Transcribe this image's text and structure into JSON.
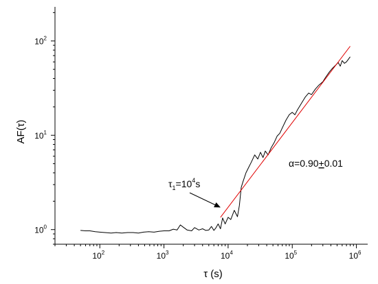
{
  "chart_data": {
    "type": "line",
    "x_scale": "log",
    "y_scale": "log",
    "xlim": [
      20,
      1500000
    ],
    "ylim": [
      0.7,
      230
    ],
    "xlabel": "τ (s)",
    "ylabel": "AF(τ)",
    "x_ticks": [
      {
        "value": 100,
        "base": "10",
        "exp": "2"
      },
      {
        "value": 1000,
        "base": "10",
        "exp": "3"
      },
      {
        "value": 10000,
        "base": "10",
        "exp": "4"
      },
      {
        "value": 100000,
        "base": "10",
        "exp": "5"
      },
      {
        "value": 1000000,
        "base": "10",
        "exp": "6"
      }
    ],
    "y_ticks": [
      {
        "value": 1,
        "base": "10",
        "exp": "0"
      },
      {
        "value": 10,
        "base": "10",
        "exp": "1"
      },
      {
        "value": 100,
        "base": "10",
        "exp": "2"
      }
    ],
    "series": [
      {
        "color": "#000000",
        "points": [
          [
            50,
            0.98
          ],
          [
            60,
            0.97
          ],
          [
            70,
            0.97
          ],
          [
            85,
            0.95
          ],
          [
            100,
            0.94
          ],
          [
            120,
            0.93
          ],
          [
            150,
            0.92
          ],
          [
            180,
            0.93
          ],
          [
            220,
            0.92
          ],
          [
            270,
            0.93
          ],
          [
            330,
            0.93
          ],
          [
            400,
            0.92
          ],
          [
            480,
            0.94
          ],
          [
            580,
            0.95
          ],
          [
            700,
            0.94
          ],
          [
            850,
            0.96
          ],
          [
            1000,
            0.97
          ],
          [
            1200,
            0.97
          ],
          [
            1400,
            1.01
          ],
          [
            1600,
            0.99
          ],
          [
            1800,
            1.12
          ],
          [
            2000,
            1.06
          ],
          [
            2300,
            0.99
          ],
          [
            2700,
            0.97
          ],
          [
            3000,
            1.05
          ],
          [
            3500,
            0.99
          ],
          [
            4000,
            1.02
          ],
          [
            4500,
            0.98
          ],
          [
            5000,
            0.99
          ],
          [
            5500,
            1.08
          ],
          [
            6000,
            0.98
          ],
          [
            6500,
            1.05
          ],
          [
            7000,
            1.15
          ],
          [
            7600,
            1.02
          ],
          [
            8200,
            1.33
          ],
          [
            9000,
            1.15
          ],
          [
            10000,
            1.35
          ],
          [
            11000,
            1.28
          ],
          [
            12500,
            1.6
          ],
          [
            14000,
            1.37
          ],
          [
            15000,
            1.8
          ],
          [
            16000,
            2.8
          ],
          [
            17000,
            3.2
          ],
          [
            19000,
            4.0
          ],
          [
            21000,
            4.6
          ],
          [
            23000,
            5.2
          ],
          [
            26000,
            6.2
          ],
          [
            29000,
            5.6
          ],
          [
            32000,
            6.6
          ],
          [
            35000,
            5.8
          ],
          [
            38000,
            6.8
          ],
          [
            42000,
            6.2
          ],
          [
            47000,
            7.4
          ],
          [
            52000,
            8.3
          ],
          [
            58000,
            9.8
          ],
          [
            64000,
            10.5
          ],
          [
            70000,
            12.0
          ],
          [
            80000,
            14.5
          ],
          [
            90000,
            16.6
          ],
          [
            100000,
            17.5
          ],
          [
            110000,
            16.5
          ],
          [
            120000,
            18.5
          ],
          [
            140000,
            22.0
          ],
          [
            160000,
            25.5
          ],
          [
            180000,
            28.0
          ],
          [
            200000,
            27.0
          ],
          [
            230000,
            31.0
          ],
          [
            260000,
            34.0
          ],
          [
            300000,
            37.0
          ],
          [
            330000,
            41.0
          ],
          [
            380000,
            47.0
          ],
          [
            420000,
            51.0
          ],
          [
            470000,
            55.0
          ],
          [
            520000,
            59.0
          ],
          [
            560000,
            54.0
          ],
          [
            600000,
            62.0
          ],
          [
            650000,
            58.0
          ],
          [
            700000,
            60.0
          ],
          [
            750000,
            64.0
          ],
          [
            800000,
            68.0
          ]
        ]
      },
      {
        "color": "#e00000",
        "points": [
          [
            7600,
            1.35
          ],
          [
            800000,
            88
          ]
        ]
      }
    ],
    "annotations": {
      "tau1": {
        "sym": "τ",
        "sub": "1",
        "eq": "=10",
        "exp": "4",
        "unit": "s"
      },
      "alpha": {
        "sym": "α",
        "eq": "=0.90",
        "pm": "+",
        "rest": "0.01"
      }
    }
  }
}
